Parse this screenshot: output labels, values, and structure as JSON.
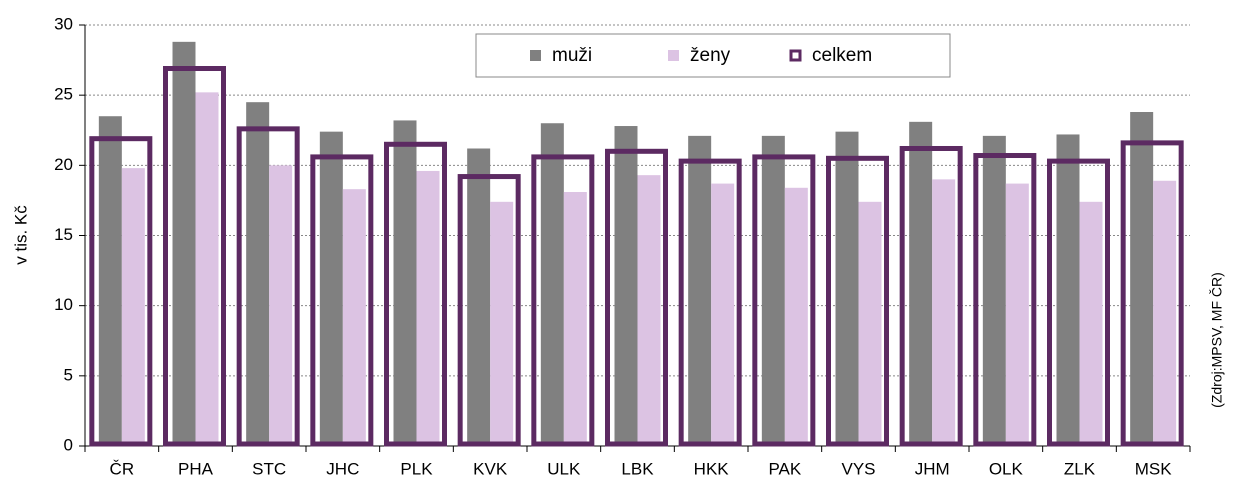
{
  "chart_data": {
    "type": "bar",
    "y_label": "v tis. Kč",
    "source": "(Zdroj:MPSV, MF ČR)",
    "categories": [
      "ČR",
      "PHA",
      "STC",
      "JHC",
      "PLK",
      "KVK",
      "ULK",
      "LBK",
      "HKK",
      "PAK",
      "VYS",
      "JHM",
      "OLK",
      "ZLK",
      "MSK"
    ],
    "series": [
      {
        "name": "muži",
        "color": "#808080",
        "values": [
          23.5,
          28.8,
          24.5,
          22.4,
          23.2,
          21.2,
          23.0,
          22.8,
          22.1,
          22.1,
          22.4,
          23.1,
          22.1,
          22.2,
          23.8
        ]
      },
      {
        "name": "ženy",
        "color": "#dcc3e3",
        "values": [
          19.8,
          25.2,
          20.0,
          18.3,
          19.6,
          17.4,
          18.1,
          19.3,
          18.7,
          18.4,
          17.4,
          19.0,
          18.7,
          17.4,
          18.9
        ]
      },
      {
        "name": "celkem",
        "color": "#5c2a62",
        "values": [
          21.9,
          26.9,
          22.6,
          20.6,
          21.5,
          19.2,
          20.6,
          21.0,
          20.3,
          20.6,
          20.5,
          21.2,
          20.7,
          20.3,
          21.6
        ]
      }
    ],
    "ylim": [
      0,
      30
    ],
    "yticks": [
      0,
      5,
      10,
      15,
      20,
      25,
      30
    ],
    "grid": true,
    "legend": "top"
  }
}
